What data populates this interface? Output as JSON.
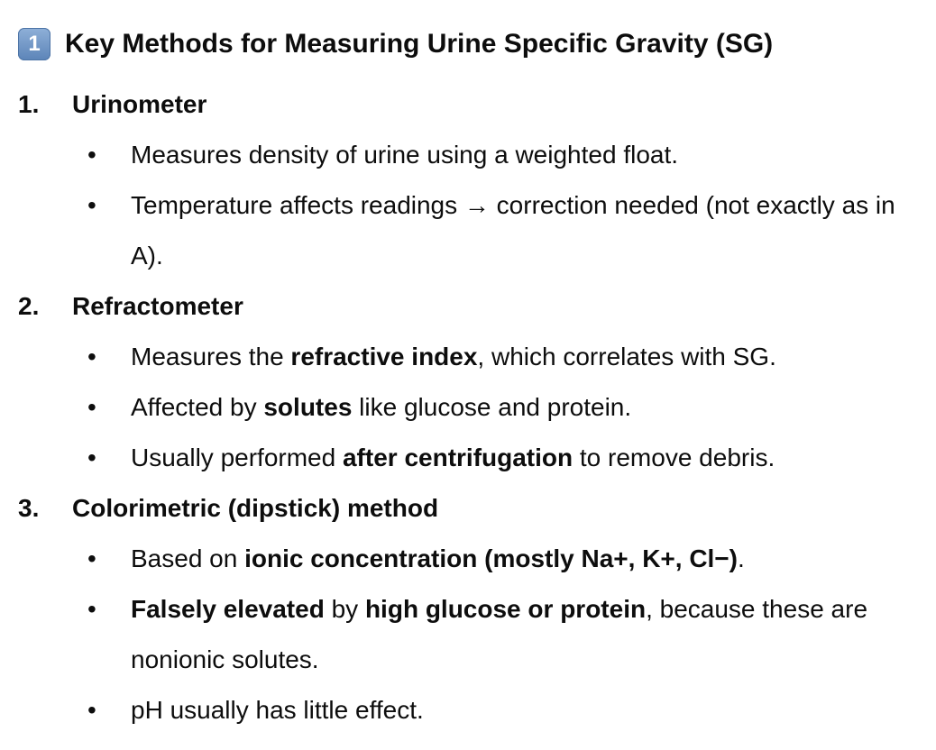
{
  "heading": {
    "keycap": "1",
    "title": "Key Methods for Measuring Urine Specific Gravity (SG)"
  },
  "items": [
    {
      "num": "1.",
      "title": "Urinometer",
      "bullets": [
        {
          "parts": [
            {
              "t": "Measures density of urine using a weighted float.",
              "b": false
            }
          ]
        },
        {
          "parts": [
            {
              "t": "Temperature affects readings → correction needed (not exactly as in A).",
              "b": false
            }
          ]
        }
      ]
    },
    {
      "num": "2.",
      "title": "Refractometer",
      "bullets": [
        {
          "parts": [
            {
              "t": "Measures the ",
              "b": false
            },
            {
              "t": "refractive index",
              "b": true
            },
            {
              "t": ", which correlates with SG.",
              "b": false
            }
          ]
        },
        {
          "parts": [
            {
              "t": "Affected by ",
              "b": false
            },
            {
              "t": "solutes",
              "b": true
            },
            {
              "t": " like glucose and protein.",
              "b": false
            }
          ]
        },
        {
          "parts": [
            {
              "t": "Usually performed ",
              "b": false
            },
            {
              "t": "after centrifugation",
              "b": true
            },
            {
              "t": " to remove debris.",
              "b": false
            }
          ]
        }
      ]
    },
    {
      "num": "3.",
      "title": "Colorimetric (dipstick) method",
      "bullets": [
        {
          "parts": [
            {
              "t": "Based on ",
              "b": false
            },
            {
              "t": "ionic concentration (mostly Na+, K+, Cl−)",
              "b": true
            },
            {
              "t": ".",
              "b": false
            }
          ]
        },
        {
          "parts": [
            {
              "t": "Falsely elevated",
              "b": true
            },
            {
              "t": " by ",
              "b": false
            },
            {
              "t": "high glucose or protein",
              "b": true
            },
            {
              "t": ", because these are nonionic solutes.",
              "b": false
            }
          ]
        },
        {
          "parts": [
            {
              "t": "pH usually has little effect.",
              "b": false
            }
          ]
        }
      ]
    }
  ]
}
